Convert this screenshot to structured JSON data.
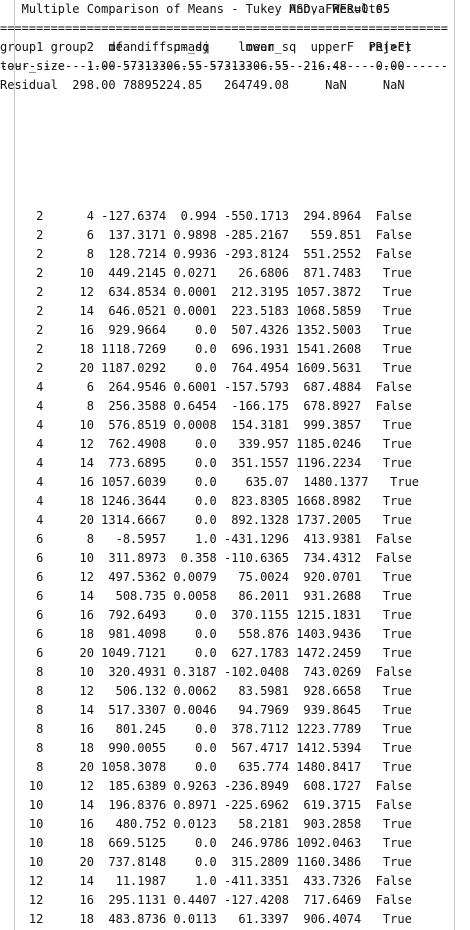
{
  "anova": {
    "title_line": "                                        Anova Results:",
    "blank_line": "",
    "header_line": "               df      sum_sq     mean_sq       F  PR(>F)",
    "rows": [
      "tour_size   1.00 57313306.55 57313306.55  216.48    0.00",
      "Residual  298.00 78895224.85   264749.08     NaN     NaN"
    ]
  },
  "tukey": {
    "title_line": "   Multiple Comparison of Means - Tukey HSD, FWER=0.05",
    "rule_line": "==============================================================",
    "header_line": "group1 group2  meandiff p-adj    lower     upper   reject",
    "dash_line": "--------------------------------------------------------------",
    "rows": [
      "     2      4 -127.6374  0.994 -550.1713  294.8964  False",
      "     2      6  137.3171 0.9898 -285.2167   559.851  False",
      "     2      8  128.7214 0.9936 -293.8124  551.2552  False",
      "     2     10  449.2145 0.0271   26.6806  871.7483   True",
      "     2     12  634.8534 0.0001  212.3195 1057.3872   True",
      "     2     14  646.0521 0.0001  223.5183 1068.5859   True",
      "     2     16  929.9664    0.0  507.4326 1352.5003   True",
      "     2     18 1118.7269    0.0  696.1931 1541.2608   True",
      "     2     20 1187.0292    0.0  764.4954 1609.5631   True",
      "     4      6  264.9546 0.6001 -157.5793  687.4884  False",
      "     4      8  256.3588 0.6454  -166.175  678.8927  False",
      "     4     10  576.8519 0.0008  154.3181  999.3857   True",
      "     4     12  762.4908    0.0   339.957 1185.0246   True",
      "     4     14  773.6895    0.0  351.1557 1196.2234   True",
      "     4     16 1057.6039    0.0    635.07  1480.1377   True",
      "     4     18 1246.3644    0.0  823.8305 1668.8982   True",
      "     4     20 1314.6667    0.0  892.1328 1737.2005   True",
      "     6      8   -8.5957    1.0 -431.1296  413.9381  False",
      "     6     10  311.8973  0.358 -110.6365  734.4312  False",
      "     6     12  497.5362 0.0079   75.0024  920.0701   True",
      "     6     14   508.735 0.0058   86.2011  931.2688   True",
      "     6     16  792.6493    0.0  370.1155 1215.1831   True",
      "     6     18  981.4098    0.0   558.876 1403.9436   True",
      "     6     20 1049.7121    0.0  627.1783 1472.2459   True",
      "     8     10  320.4931 0.3187 -102.0408  743.0269  False",
      "     8     12   506.132 0.0062   83.5981  928.6658   True",
      "     8     14  517.3307 0.0046   94.7969  939.8645   True",
      "     8     16   801.245    0.0  378.7112 1223.7789   True",
      "     8     18  990.0055    0.0  567.4717 1412.5394   True",
      "     8     20 1058.3078    0.0   635.774 1480.8417   True",
      "    10     12  185.6389 0.9263 -236.8949  608.1727  False",
      "    10     14  196.8376 0.8971 -225.6962  619.3715  False",
      "    10     16   480.752 0.0123   58.2181  903.2858   True",
      "    10     18  669.5125    0.0  246.9786 1092.0463   True",
      "    10     20  737.8148    0.0  315.2809 1160.3486   True",
      "    12     14   11.1987    1.0 -411.3351  433.7326  False",
      "    12     16  295.1131 0.4407 -127.4208  717.6469  False",
      "    12     18  483.8736 0.0113   61.3397  906.4074   True"
    ]
  }
}
